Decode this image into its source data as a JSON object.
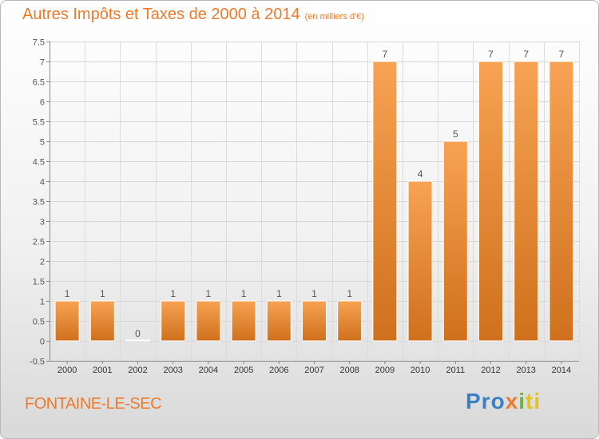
{
  "header": {
    "title": "Autres Impôts et Taxes de 2000 à 2014",
    "subtitle": "(en milliers d'€)"
  },
  "footer": {
    "place": "FONTAINE-LE-SEC",
    "brand": {
      "p1": "Pro",
      "p2": "x",
      "p3": "i",
      "p4": "ti"
    }
  },
  "colors": {
    "bar_top": "#f7a353",
    "bar_bottom": "#cf701c",
    "accent": "#ee7a2b"
  },
  "chart_data": {
    "type": "bar",
    "title": "Autres Impôts et Taxes de 2000 à 2014",
    "subtitle": "(en milliers d'€)",
    "xlabel": "",
    "ylabel": "",
    "categories": [
      "2000",
      "2001",
      "2002",
      "2003",
      "2004",
      "2005",
      "2006",
      "2007",
      "2008",
      "2009",
      "2010",
      "2011",
      "2012",
      "2013",
      "2014"
    ],
    "values": [
      1,
      1,
      0,
      1,
      1,
      1,
      1,
      1,
      1,
      7,
      4,
      5,
      7,
      7,
      7
    ],
    "data_labels": [
      "1",
      "1",
      "0",
      "1",
      "1",
      "1",
      "1",
      "1",
      "1",
      "7",
      "4",
      "5",
      "7",
      "7",
      "7"
    ],
    "ylim": [
      -0.5,
      7.5
    ],
    "yticks": [
      -0.5,
      0,
      0.5,
      1,
      1.5,
      2,
      2.5,
      3,
      3.5,
      4,
      4.5,
      5,
      5.5,
      6,
      6.5,
      7,
      7.5
    ],
    "ytick_labels": [
      "-0.5",
      "0",
      "0.5",
      "1",
      "1.5",
      "2",
      "2.5",
      "3",
      "3.5",
      "4",
      "4.5",
      "5",
      "5.5",
      "6",
      "6.5",
      "7",
      "7.5"
    ],
    "grid": true
  }
}
